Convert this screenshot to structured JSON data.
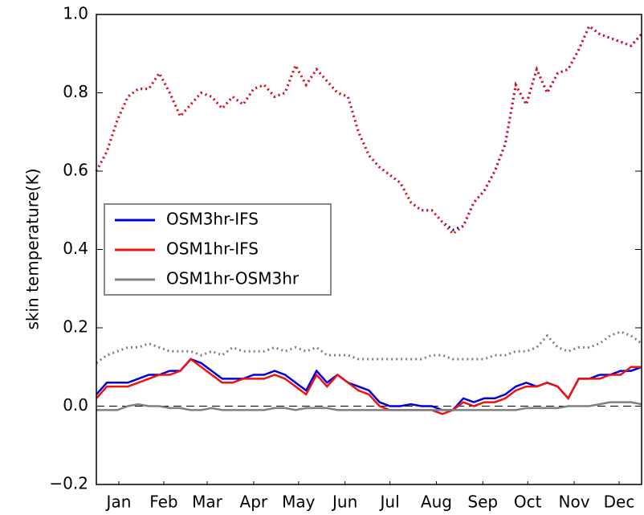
{
  "chart_data": {
    "type": "line",
    "ylabel": "skin temperature(K)",
    "x": [
      1,
      8,
      15,
      22,
      29,
      36,
      43,
      50,
      57,
      64,
      71,
      78,
      85,
      92,
      99,
      106,
      113,
      120,
      127,
      134,
      141,
      148,
      155,
      162,
      169,
      176,
      183,
      190,
      197,
      204,
      211,
      218,
      225,
      232,
      239,
      246,
      253,
      260,
      267,
      274,
      281,
      288,
      295,
      302,
      309,
      316,
      323,
      330,
      337,
      344,
      351,
      358,
      365
    ],
    "xlim": [
      1,
      365
    ],
    "xticks": [
      {
        "value": 16,
        "label": "Jan"
      },
      {
        "value": 46,
        "label": "Feb"
      },
      {
        "value": 75,
        "label": "Mar"
      },
      {
        "value": 106,
        "label": "Apr"
      },
      {
        "value": 136,
        "label": "May"
      },
      {
        "value": 167,
        "label": "Jun"
      },
      {
        "value": 197,
        "label": "Jul"
      },
      {
        "value": 228,
        "label": "Aug"
      },
      {
        "value": 259,
        "label": "Sep"
      },
      {
        "value": 289,
        "label": "Oct"
      },
      {
        "value": 320,
        "label": "Nov"
      },
      {
        "value": 350,
        "label": "Dec"
      }
    ],
    "ylim": [
      -0.2,
      1.0
    ],
    "yticks": [
      {
        "value": -0.2,
        "label": "−0.2"
      },
      {
        "value": 0,
        "label": "0.0"
      },
      0.2,
      0.4,
      0.6,
      0.8,
      {
        "value": 1.0,
        "label": "1.0"
      }
    ],
    "reference_line": 0,
    "legend": "center-left",
    "series": [
      {
        "name": "OSM3hr-IFS",
        "color": "#0000dd",
        "values": [
          0.03,
          0.06,
          0.06,
          0.06,
          0.07,
          0.08,
          0.08,
          0.09,
          0.09,
          0.12,
          0.11,
          0.09,
          0.07,
          0.07,
          0.07,
          0.08,
          0.08,
          0.09,
          0.08,
          0.06,
          0.04,
          0.09,
          0.06,
          0.08,
          0.06,
          0.05,
          0.04,
          0.01,
          0.0,
          0.0,
          0.005,
          0.0,
          0.0,
          -0.01,
          -0.01,
          0.02,
          0.01,
          0.02,
          0.02,
          0.03,
          0.05,
          0.06,
          0.05,
          0.06,
          0.05,
          0.02,
          0.07,
          0.07,
          0.08,
          0.08,
          0.09,
          0.09,
          0.1
        ],
        "dotted_values": [
          0.6,
          0.65,
          0.73,
          0.79,
          0.81,
          0.81,
          0.85,
          0.8,
          0.74,
          0.77,
          0.8,
          0.79,
          0.76,
          0.79,
          0.77,
          0.81,
          0.82,
          0.79,
          0.8,
          0.87,
          0.82,
          0.86,
          0.83,
          0.8,
          0.79,
          0.7,
          0.64,
          0.61,
          0.59,
          0.57,
          0.52,
          0.5,
          0.5,
          0.47,
          0.45,
          0.46,
          0.52,
          0.55,
          0.6,
          0.67,
          0.82,
          0.77,
          0.86,
          0.8,
          0.85,
          0.86,
          0.91,
          0.97,
          0.95,
          0.94,
          0.93,
          0.92,
          0.95
        ]
      },
      {
        "name": "OSM1hr-IFS",
        "color": "#ee1111",
        "values": [
          0.02,
          0.05,
          0.05,
          0.05,
          0.06,
          0.07,
          0.08,
          0.08,
          0.09,
          0.12,
          0.1,
          0.08,
          0.06,
          0.06,
          0.07,
          0.07,
          0.07,
          0.08,
          0.07,
          0.05,
          0.03,
          0.08,
          0.05,
          0.08,
          0.06,
          0.04,
          0.03,
          0.0,
          -0.01,
          -0.01,
          -0.01,
          -0.01,
          -0.01,
          -0.02,
          -0.01,
          0.01,
          0.0,
          0.01,
          0.01,
          0.02,
          0.04,
          0.05,
          0.05,
          0.06,
          0.05,
          0.02,
          0.07,
          0.07,
          0.07,
          0.08,
          0.08,
          0.1,
          0.1
        ],
        "dotted_values": [
          0.6,
          0.65,
          0.73,
          0.79,
          0.81,
          0.81,
          0.85,
          0.8,
          0.74,
          0.77,
          0.8,
          0.79,
          0.76,
          0.79,
          0.77,
          0.81,
          0.82,
          0.79,
          0.8,
          0.87,
          0.82,
          0.86,
          0.83,
          0.8,
          0.79,
          0.7,
          0.64,
          0.61,
          0.59,
          0.57,
          0.52,
          0.5,
          0.5,
          0.47,
          0.44,
          0.46,
          0.52,
          0.55,
          0.6,
          0.67,
          0.82,
          0.77,
          0.86,
          0.8,
          0.85,
          0.86,
          0.91,
          0.97,
          0.95,
          0.94,
          0.93,
          0.92,
          0.95
        ]
      },
      {
        "name": "OSM1hr-OSM3hr",
        "color": "#808080",
        "values": [
          -0.01,
          -0.01,
          -0.01,
          0.0,
          0.005,
          0.0,
          0.0,
          -0.005,
          -0.005,
          -0.01,
          -0.01,
          -0.005,
          -0.01,
          -0.01,
          -0.01,
          -0.01,
          -0.01,
          -0.005,
          -0.005,
          -0.01,
          -0.005,
          -0.005,
          -0.005,
          -0.01,
          -0.01,
          -0.01,
          -0.01,
          -0.01,
          -0.01,
          -0.01,
          -0.01,
          -0.01,
          -0.01,
          -0.01,
          -0.01,
          -0.01,
          -0.01,
          -0.01,
          -0.01,
          -0.01,
          -0.01,
          -0.005,
          -0.005,
          -0.005,
          -0.005,
          0.0,
          0.0,
          0.0,
          0.005,
          0.01,
          0.01,
          0.01,
          0.005
        ],
        "dotted_values": [
          0.11,
          0.13,
          0.14,
          0.15,
          0.15,
          0.16,
          0.15,
          0.14,
          0.14,
          0.14,
          0.13,
          0.14,
          0.13,
          0.15,
          0.14,
          0.14,
          0.14,
          0.15,
          0.14,
          0.15,
          0.14,
          0.15,
          0.13,
          0.13,
          0.13,
          0.12,
          0.12,
          0.12,
          0.12,
          0.12,
          0.12,
          0.12,
          0.13,
          0.13,
          0.12,
          0.12,
          0.12,
          0.12,
          0.13,
          0.13,
          0.14,
          0.14,
          0.15,
          0.18,
          0.15,
          0.14,
          0.15,
          0.15,
          0.16,
          0.18,
          0.19,
          0.18,
          0.16
        ]
      }
    ]
  }
}
